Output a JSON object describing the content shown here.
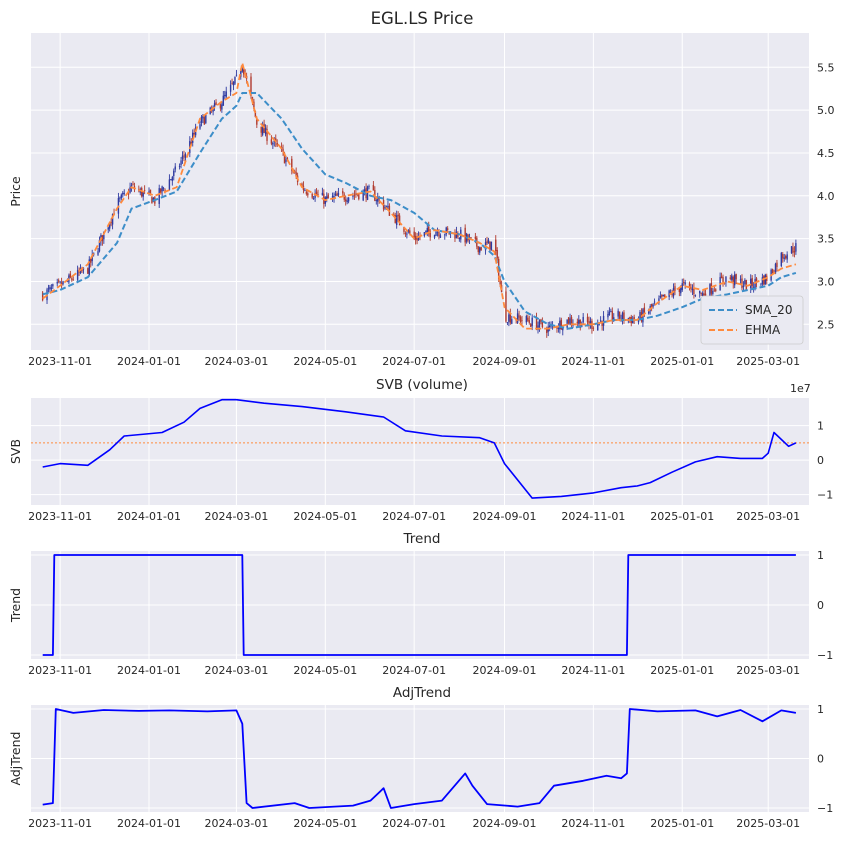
{
  "x_ticks": [
    "2023-11-01",
    "2024-01-01",
    "2024-03-01",
    "2024-05-01",
    "2024-07-01",
    "2024-09-01",
    "2024-11-01",
    "2025-01-01",
    "2025-03-01"
  ],
  "colors": {
    "up": "#2f3aa0",
    "down": "#b03a2e",
    "sma": "#3d8ec9",
    "ehma": "#ff8a3d",
    "blue": "#0000ff",
    "ref": "#ff8a3d"
  },
  "chart_data": [
    {
      "type": "line",
      "title": "EGL.LS Price",
      "ylabel": "Price",
      "ylim": [
        2.2,
        5.9
      ],
      "yticks": [
        "2.5",
        "3.0",
        "3.5",
        "4.0",
        "4.5",
        "5.0",
        "5.5"
      ],
      "legend": {
        "position": "lower-right",
        "entries": [
          "SMA_20",
          "EHMA"
        ]
      },
      "candles_note": "OHLC candlesticks, up = blue, down = red",
      "x_dates": [
        "2023-10-20",
        "2023-11-01",
        "2023-11-20",
        "2023-12-10",
        "2023-12-20",
        "2024-01-05",
        "2024-01-20",
        "2024-02-05",
        "2024-02-20",
        "2024-03-01",
        "2024-03-05",
        "2024-03-15",
        "2024-04-01",
        "2024-04-15",
        "2024-05-01",
        "2024-05-15",
        "2024-06-01",
        "2024-06-15",
        "2024-07-01",
        "2024-07-15",
        "2024-08-01",
        "2024-08-15",
        "2024-08-25",
        "2024-09-01",
        "2024-09-15",
        "2024-10-01",
        "2024-10-15",
        "2024-11-01",
        "2024-11-15",
        "2024-12-01",
        "2024-12-15",
        "2025-01-01",
        "2025-01-15",
        "2025-02-01",
        "2025-02-15",
        "2025-03-01",
        "2025-03-10",
        "2025-03-20"
      ],
      "close": [
        2.85,
        2.95,
        3.15,
        3.9,
        4.1,
        3.95,
        4.3,
        4.85,
        5.1,
        5.35,
        5.55,
        4.85,
        4.5,
        4.1,
        3.95,
        4.0,
        4.05,
        3.8,
        3.5,
        3.6,
        3.55,
        3.4,
        3.45,
        2.6,
        2.55,
        2.45,
        2.55,
        2.5,
        2.6,
        2.55,
        2.75,
        2.95,
        2.85,
        3.05,
        2.95,
        3.05,
        3.3,
        3.4
      ],
      "series": [
        {
          "name": "SMA_20",
          "style": "dashed",
          "values": [
            2.85,
            2.9,
            3.05,
            3.45,
            3.85,
            3.95,
            4.05,
            4.5,
            4.9,
            5.05,
            5.2,
            5.2,
            4.9,
            4.55,
            4.25,
            4.15,
            4.0,
            3.95,
            3.8,
            3.6,
            3.55,
            3.45,
            3.3,
            3.0,
            2.65,
            2.5,
            2.45,
            2.5,
            2.55,
            2.55,
            2.6,
            2.7,
            2.8,
            2.85,
            2.9,
            2.95,
            3.05,
            3.1
          ]
        },
        {
          "name": "EHMA",
          "style": "dashed",
          "values": [
            2.8,
            2.95,
            3.2,
            3.85,
            4.1,
            4.0,
            4.1,
            4.9,
            5.1,
            5.2,
            5.55,
            4.9,
            4.55,
            4.1,
            3.95,
            4.0,
            4.05,
            3.8,
            3.5,
            3.6,
            3.55,
            3.45,
            3.35,
            2.7,
            2.45,
            2.45,
            2.5,
            2.5,
            2.55,
            2.55,
            2.75,
            2.95,
            2.9,
            3.0,
            2.95,
            3.05,
            3.15,
            3.2
          ]
        }
      ]
    },
    {
      "type": "line",
      "title": "SVB (volume)",
      "ylabel": "SVB",
      "offset_label": "1e7",
      "ylim": [
        -1.3,
        1.8
      ],
      "yticks": [
        "−1",
        "0",
        "1"
      ],
      "ref_line": 0.5,
      "x_dates": [
        "2023-10-20",
        "2023-11-01",
        "2023-11-20",
        "2023-12-05",
        "2023-12-15",
        "2024-01-10",
        "2024-01-25",
        "2024-02-05",
        "2024-02-20",
        "2024-03-01",
        "2024-03-20",
        "2024-04-15",
        "2024-05-15",
        "2024-06-10",
        "2024-06-25",
        "2024-07-20",
        "2024-08-15",
        "2024-08-25",
        "2024-09-01",
        "2024-09-20",
        "2024-10-10",
        "2024-11-01",
        "2024-11-20",
        "2024-12-01",
        "2024-12-10",
        "2024-12-25",
        "2025-01-10",
        "2025-01-25",
        "2025-02-10",
        "2025-02-25",
        "2025-03-01",
        "2025-03-05",
        "2025-03-15",
        "2025-03-20"
      ],
      "values": [
        -0.2,
        -0.1,
        -0.15,
        0.3,
        0.7,
        0.8,
        1.1,
        1.5,
        1.75,
        1.75,
        1.65,
        1.55,
        1.4,
        1.25,
        0.85,
        0.7,
        0.65,
        0.5,
        -0.1,
        -1.1,
        -1.05,
        -0.95,
        -0.8,
        -0.75,
        -0.65,
        -0.35,
        -0.05,
        0.1,
        0.05,
        0.05,
        0.2,
        0.8,
        0.4,
        0.5
      ]
    },
    {
      "type": "line",
      "title": "Trend",
      "ylabel": "Trend",
      "ylim": [
        -1.08,
        1.08
      ],
      "yticks": [
        "−1",
        "0",
        "1"
      ],
      "x_dates": [
        "2023-10-20",
        "2023-10-27",
        "2023-10-28",
        "2024-03-05",
        "2024-03-06",
        "2024-11-24",
        "2024-11-25",
        "2025-03-20"
      ],
      "values": [
        -1,
        -1,
        1,
        1,
        -1,
        -1,
        1,
        1
      ]
    },
    {
      "type": "line",
      "title": "AdjTrend",
      "ylabel": "AdjTrend",
      "ylim": [
        -1.08,
        1.08
      ],
      "yticks": [
        "−1",
        "0",
        "1"
      ],
      "x_dates": [
        "2023-10-20",
        "2023-10-27",
        "2023-10-29",
        "2023-11-10",
        "2023-12-01",
        "2023-12-25",
        "2024-01-15",
        "2024-02-10",
        "2024-03-01",
        "2024-03-05",
        "2024-03-08",
        "2024-03-12",
        "2024-04-10",
        "2024-04-20",
        "2024-05-20",
        "2024-06-01",
        "2024-06-10",
        "2024-06-15",
        "2024-07-01",
        "2024-07-20",
        "2024-08-05",
        "2024-08-10",
        "2024-08-20",
        "2024-09-10",
        "2024-09-25",
        "2024-10-05",
        "2024-10-25",
        "2024-11-10",
        "2024-11-20",
        "2024-11-24",
        "2024-11-26",
        "2024-12-15",
        "2025-01-10",
        "2025-01-25",
        "2025-02-10",
        "2025-02-25",
        "2025-03-10",
        "2025-03-20"
      ],
      "values": [
        -0.93,
        -0.9,
        1.0,
        0.92,
        0.98,
        0.96,
        0.97,
        0.95,
        0.97,
        0.7,
        -0.9,
        -1.0,
        -0.9,
        -1.0,
        -0.95,
        -0.85,
        -0.6,
        -1.0,
        -0.92,
        -0.85,
        -0.3,
        -0.55,
        -0.92,
        -0.97,
        -0.9,
        -0.55,
        -0.45,
        -0.35,
        -0.4,
        -0.3,
        1.0,
        0.95,
        0.97,
        0.85,
        0.98,
        0.75,
        0.97,
        0.92
      ]
    }
  ]
}
